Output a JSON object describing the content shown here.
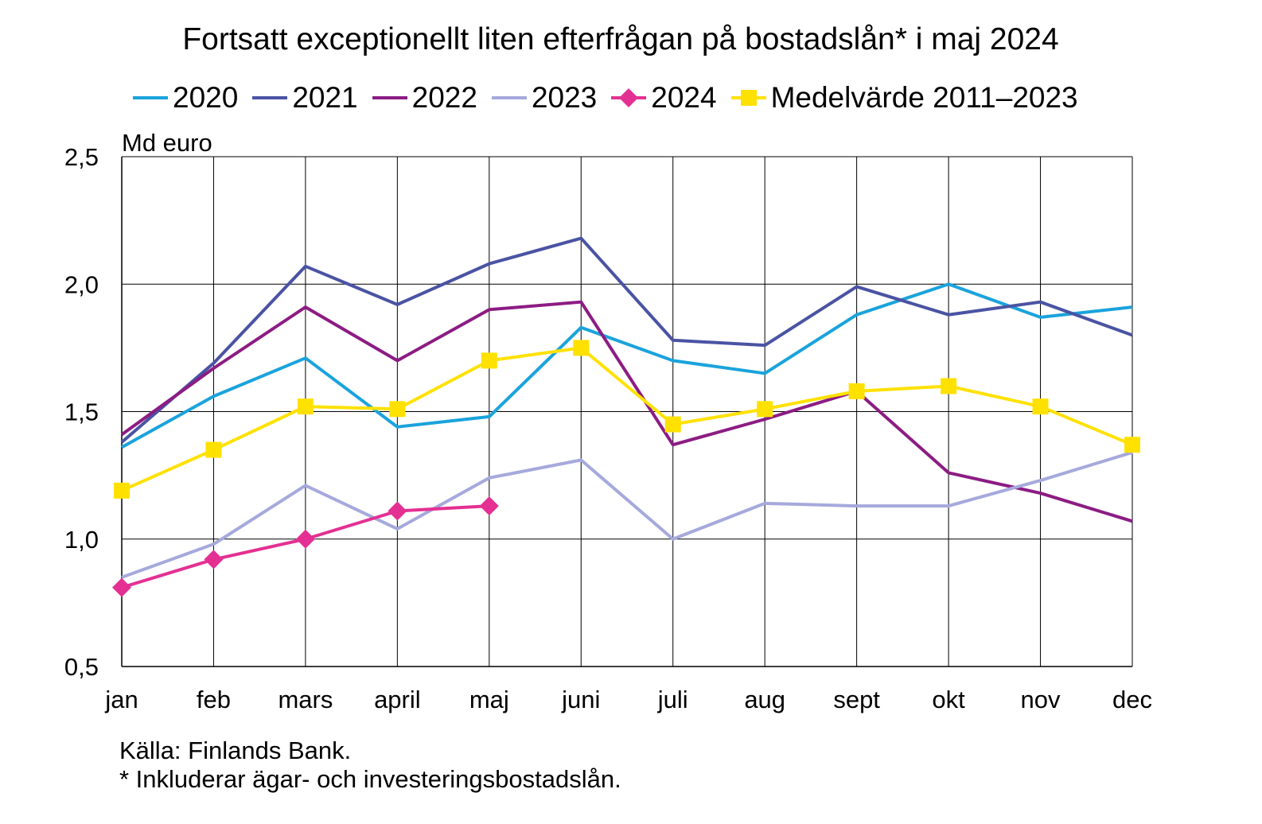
{
  "chart_data": {
    "type": "line",
    "title": "Fortsatt exceptionellt liten efterfrågan på bostadslån* i maj 2024",
    "ylabel": "Md euro",
    "xlabel": "",
    "categories": [
      "jan",
      "feb",
      "mars",
      "april",
      "maj",
      "juni",
      "juli",
      "aug",
      "sept",
      "okt",
      "nov",
      "dec"
    ],
    "ylim": [
      0.5,
      2.5
    ],
    "yticks": [
      0.5,
      1.0,
      1.5,
      2.0,
      2.5
    ],
    "ytick_labels": [
      "0,5",
      "1,0",
      "1,5",
      "2,0",
      "2,5"
    ],
    "grid": true,
    "legend_position": "top",
    "series": [
      {
        "name": "2020",
        "color": "#1aa3dc",
        "marker": "none",
        "values": [
          1.36,
          1.56,
          1.71,
          1.44,
          1.48,
          1.83,
          1.7,
          1.65,
          1.88,
          2.0,
          1.87,
          1.91
        ]
      },
      {
        "name": "2021",
        "color": "#4a53a3",
        "marker": "none",
        "values": [
          1.38,
          1.69,
          2.07,
          1.92,
          2.08,
          2.18,
          1.78,
          1.76,
          1.99,
          1.88,
          1.93,
          1.8
        ]
      },
      {
        "name": "2022",
        "color": "#8c1c83",
        "marker": "none",
        "values": [
          1.41,
          1.67,
          1.91,
          1.7,
          1.9,
          1.93,
          1.37,
          1.47,
          1.58,
          1.26,
          1.18,
          1.07
        ]
      },
      {
        "name": "2023",
        "color": "#a5a9dc",
        "marker": "none",
        "values": [
          0.85,
          0.98,
          1.21,
          1.04,
          1.24,
          1.31,
          1.0,
          1.14,
          1.13,
          1.13,
          1.23,
          1.34
        ]
      },
      {
        "name": "2024",
        "color": "#e43092",
        "marker": "diamond",
        "values": [
          0.81,
          0.92,
          1.0,
          1.11,
          1.13,
          null,
          null,
          null,
          null,
          null,
          null,
          null
        ]
      },
      {
        "name": "Medelvärde 2011–2023",
        "color": "#ffe100",
        "marker": "square",
        "values": [
          1.19,
          1.35,
          1.52,
          1.51,
          1.7,
          1.75,
          1.45,
          1.51,
          1.58,
          1.6,
          1.52,
          1.37
        ]
      }
    ]
  },
  "footer": {
    "source": "Källa: Finlands Bank.",
    "note": "* Inkluderar ägar- och investeringsbostadslån."
  }
}
